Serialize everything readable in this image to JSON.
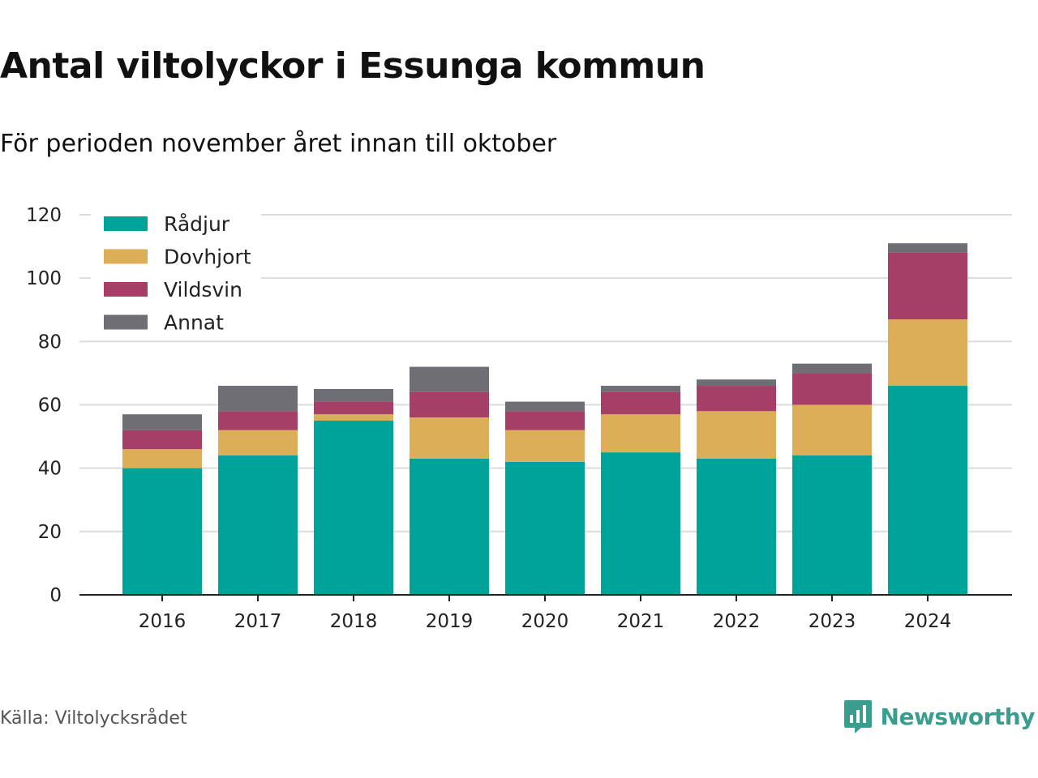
{
  "title": "Antal viltolyckor i Essunga kommun",
  "subtitle": "För perioden november året innan till oktober",
  "source": "Källa: Viltolycksrådet",
  "brand": {
    "name": "Newsworthy",
    "color": "#3a9e8f"
  },
  "chart_data": {
    "type": "bar",
    "stacked": true,
    "categories": [
      "2016",
      "2017",
      "2018",
      "2019",
      "2020",
      "2021",
      "2022",
      "2023",
      "2024"
    ],
    "series": [
      {
        "name": "Rådjur",
        "color": "#00a39a",
        "values": [
          40,
          44,
          55,
          43,
          42,
          45,
          43,
          44,
          66
        ]
      },
      {
        "name": "Dovhjort",
        "color": "#dcae57",
        "values": [
          6,
          8,
          2,
          13,
          10,
          12,
          15,
          16,
          21
        ]
      },
      {
        "name": "Vildsvin",
        "color": "#a63f68",
        "values": [
          6,
          6,
          4,
          8,
          6,
          7,
          8,
          10,
          21
        ]
      },
      {
        "name": "Annat",
        "color": "#6e6e74",
        "values": [
          5,
          8,
          4,
          8,
          3,
          2,
          2,
          3,
          3
        ]
      }
    ],
    "ylim": [
      0,
      120
    ],
    "yticks": [
      0,
      20,
      40,
      60,
      80,
      100,
      120
    ],
    "grid": true,
    "legend": "top-left"
  }
}
